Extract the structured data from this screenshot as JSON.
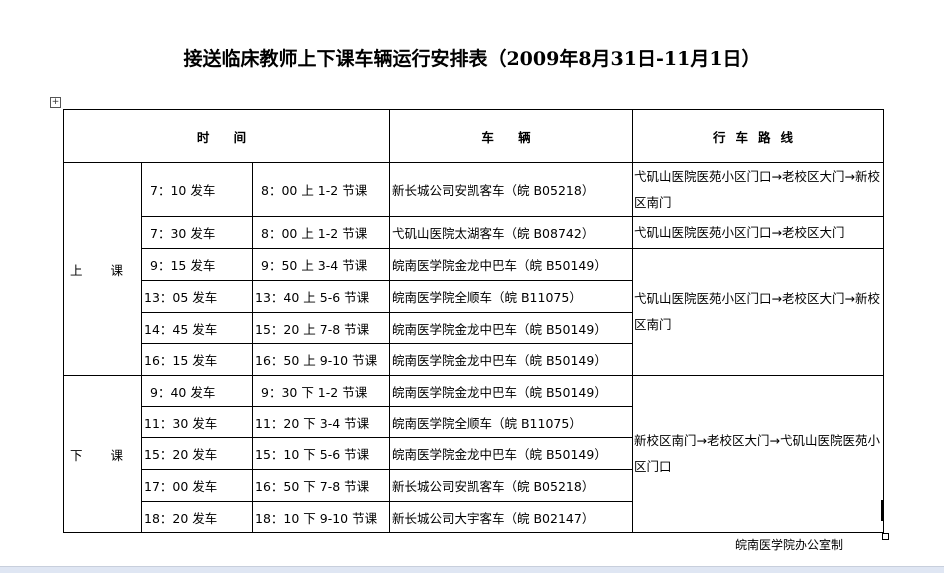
{
  "title": "接送临床教师上下课车辆运行安排表（2009年8月31日-11月1日）",
  "headers": {
    "time": "时 间",
    "vehicle": "车 辆",
    "route": "行车路线"
  },
  "sections": {
    "up": "上 课",
    "down": "下 课"
  },
  "rows": [
    {
      "depart": "7：10 发车",
      "class": "8：00 上 1-2 节课",
      "vehicle": "新长城公司安凯客车（皖 B05218）"
    },
    {
      "depart": "7：30 发车",
      "class": "8：00 上 1-2 节课",
      "vehicle": "弋矶山医院太湖客车（皖 B08742）"
    },
    {
      "depart": "9：15 发车",
      "class": "9：50 上 3-4 节课",
      "vehicle": "皖南医学院金龙中巴车（皖 B50149）"
    },
    {
      "depart": "13：05 发车",
      "class": "13：40 上 5-6 节课",
      "vehicle": "皖南医学院全顺车（皖 B11075）"
    },
    {
      "depart": "14：45 发车",
      "class": "15：20 上 7-8 节课",
      "vehicle": "皖南医学院金龙中巴车（皖 B50149）"
    },
    {
      "depart": "16：15 发车",
      "class": "16：50 上 9-10 节课",
      "vehicle": "皖南医学院金龙中巴车（皖 B50149）"
    },
    {
      "depart": "9：40 发车",
      "class": "9：30 下 1-2 节课",
      "vehicle": "皖南医学院金龙中巴车（皖 B50149）"
    },
    {
      "depart": "11：30 发车",
      "class": "11：20 下 3-4 节课",
      "vehicle": "皖南医学院全顺车（皖 B11075）"
    },
    {
      "depart": "15：20 发车",
      "class": "15：10 下 5-6 节课",
      "vehicle": "皖南医学院金龙中巴车（皖 B50149）"
    },
    {
      "depart": "17：00 发车",
      "class": "16：50 下 7-8 节课",
      "vehicle": "新长城公司安凯客车（皖 B05218）"
    },
    {
      "depart": "18：20 发车",
      "class": "18：10 下 9-10 节课",
      "vehicle": "新长城公司大宇客车（皖 B02147）"
    }
  ],
  "routes": [
    "弋矶山医院医苑小区门口→老校区大门→新校区南门",
    "弋矶山医院医苑小区门口→老校区大门",
    "弋矶山医院医苑小区门口→老校区大门→新校区南门",
    "新校区南门→老校区大门→弋矶山医院医苑小区门口"
  ],
  "footer": "皖南医学院办公室制"
}
